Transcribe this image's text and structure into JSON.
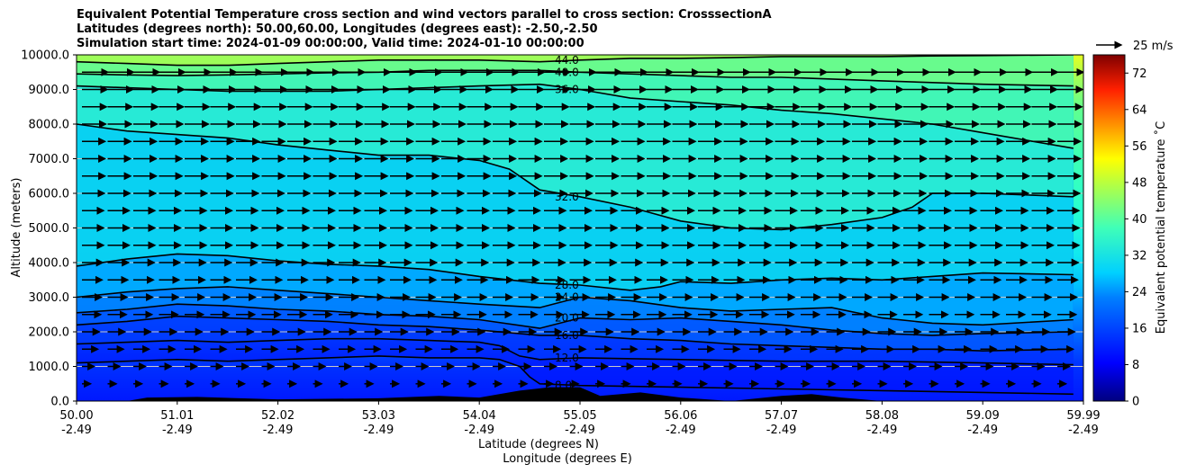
{
  "title": {
    "line1": "Equivalent Potential Temperature cross section and wind vectors parallel to cross section: CrosssectionA",
    "line2": "Latitudes (degrees north): 50.00,60.00, Longitudes (degrees east): -2.50,-2.50",
    "line3": "Simulation start time: 2024-01-09 00:00:00, Valid time: 2024-01-10 00:00:00"
  },
  "quiver_key": {
    "label": "25 m/s"
  },
  "chart_data": {
    "type": "contour",
    "ylabel": "Altitude (meters)",
    "xlabel_line1": "Latitude (degrees N)",
    "xlabel_line2": "Longitude (degrees E)",
    "ylim": [
      0,
      10000
    ],
    "y_ticks": [
      "0.0",
      "1000.0",
      "2000.0",
      "3000.0",
      "4000.0",
      "5000.0",
      "6000.0",
      "7000.0",
      "8000.0",
      "9000.0",
      "10000.0"
    ],
    "x_ticks": [
      {
        "lat": "50.00",
        "lon": "-2.49"
      },
      {
        "lat": "51.01",
        "lon": "-2.49"
      },
      {
        "lat": "52.02",
        "lon": "-2.49"
      },
      {
        "lat": "53.03",
        "lon": "-2.49"
      },
      {
        "lat": "54.04",
        "lon": "-2.49"
      },
      {
        "lat": "55.05",
        "lon": "-2.49"
      },
      {
        "lat": "56.06",
        "lon": "-2.49"
      },
      {
        "lat": "57.07",
        "lon": "-2.49"
      },
      {
        "lat": "58.08",
        "lon": "-2.49"
      },
      {
        "lat": "59.09",
        "lon": "-2.49"
      },
      {
        "lat": "59.99",
        "lon": "-2.49"
      }
    ],
    "grid": true,
    "colorbar": {
      "label": "Equivalent potential temperature ˚C",
      "min": 0,
      "max": 76,
      "ticks": [
        "0",
        "8",
        "16",
        "24",
        "32",
        "40",
        "48",
        "56",
        "64",
        "72"
      ],
      "colormap": "jet"
    },
    "contours": [
      {
        "level": 8,
        "label": "8.0",
        "points": [
          [
            0.0,
            1100
          ],
          [
            0.5,
            1150
          ],
          [
            1.0,
            1200
          ],
          [
            1.5,
            1150
          ],
          [
            2.0,
            1200
          ],
          [
            2.5,
            1250
          ],
          [
            3.0,
            1300
          ],
          [
            3.5,
            1250
          ],
          [
            4.0,
            1250
          ],
          [
            4.2,
            1200
          ],
          [
            4.4,
            1000
          ],
          [
            4.5,
            700
          ],
          [
            4.6,
            500
          ],
          [
            5.0,
            450
          ],
          [
            6.0,
            400
          ],
          [
            7.0,
            350
          ],
          [
            8.0,
            300
          ],
          [
            9.0,
            250
          ],
          [
            9.9,
            200
          ]
        ]
      },
      {
        "level": 12,
        "label": "12.0",
        "points": [
          [
            0.0,
            1650
          ],
          [
            0.5,
            1700
          ],
          [
            1.0,
            1750
          ],
          [
            1.5,
            1700
          ],
          [
            2.0,
            1750
          ],
          [
            2.5,
            1800
          ],
          [
            3.0,
            1800
          ],
          [
            3.5,
            1750
          ],
          [
            4.0,
            1700
          ],
          [
            4.2,
            1600
          ],
          [
            4.4,
            1300
          ],
          [
            4.6,
            1200
          ],
          [
            5.0,
            1250
          ],
          [
            6.0,
            1200
          ],
          [
            7.0,
            1150
          ],
          [
            8.0,
            1150
          ],
          [
            9.0,
            1100
          ],
          [
            9.9,
            1050
          ]
        ]
      },
      {
        "level": 16,
        "label": "16.0",
        "points": [
          [
            0.0,
            2200
          ],
          [
            0.5,
            2300
          ],
          [
            1.0,
            2450
          ],
          [
            1.5,
            2400
          ],
          [
            2.0,
            2350
          ],
          [
            2.5,
            2300
          ],
          [
            3.0,
            2200
          ],
          [
            3.5,
            2150
          ],
          [
            4.0,
            2050
          ],
          [
            4.6,
            1900
          ],
          [
            5.0,
            1900
          ],
          [
            5.5,
            1800
          ],
          [
            6.0,
            1750
          ],
          [
            6.5,
            1650
          ],
          [
            7.0,
            1600
          ],
          [
            7.5,
            1550
          ],
          [
            8.0,
            1500
          ],
          [
            8.5,
            1500
          ],
          [
            9.0,
            1450
          ],
          [
            9.9,
            1500
          ]
        ]
      },
      {
        "level": 20,
        "label": "20.0",
        "points": [
          [
            0.0,
            2550
          ],
          [
            0.5,
            2650
          ],
          [
            1.0,
            2800
          ],
          [
            1.5,
            2750
          ],
          [
            2.0,
            2650
          ],
          [
            2.5,
            2600
          ],
          [
            3.0,
            2500
          ],
          [
            3.5,
            2450
          ],
          [
            4.0,
            2350
          ],
          [
            4.6,
            2100
          ],
          [
            5.0,
            2400
          ],
          [
            5.5,
            2350
          ],
          [
            6.0,
            2400
          ],
          [
            6.5,
            2300
          ],
          [
            7.0,
            2200
          ],
          [
            7.5,
            2050
          ],
          [
            8.0,
            1950
          ],
          [
            8.5,
            1900
          ],
          [
            9.0,
            1950
          ],
          [
            9.9,
            2000
          ]
        ]
      },
      {
        "level": 24,
        "label": "24.0",
        "points": [
          [
            0.0,
            3000
          ],
          [
            0.5,
            3150
          ],
          [
            1.0,
            3250
          ],
          [
            1.5,
            3300
          ],
          [
            2.0,
            3200
          ],
          [
            2.5,
            3100
          ],
          [
            3.0,
            3000
          ],
          [
            3.5,
            2900
          ],
          [
            4.0,
            2800
          ],
          [
            4.6,
            2700
          ],
          [
            5.0,
            3000
          ],
          [
            5.5,
            2900
          ],
          [
            6.0,
            2700
          ],
          [
            6.5,
            2600
          ],
          [
            7.0,
            2650
          ],
          [
            7.5,
            2700
          ],
          [
            8.0,
            2400
          ],
          [
            8.5,
            2250
          ],
          [
            9.0,
            2200
          ],
          [
            9.9,
            2350
          ]
        ]
      },
      {
        "level": 28,
        "label": "28.0",
        "points": [
          [
            0.0,
            3900
          ],
          [
            0.5,
            4100
          ],
          [
            1.0,
            4250
          ],
          [
            1.5,
            4200
          ],
          [
            2.0,
            4050
          ],
          [
            2.5,
            3950
          ],
          [
            3.0,
            3900
          ],
          [
            3.5,
            3800
          ],
          [
            4.0,
            3600
          ],
          [
            4.6,
            3400
          ],
          [
            5.0,
            3350
          ],
          [
            5.5,
            3200
          ],
          [
            5.8,
            3300
          ],
          [
            6.0,
            3450
          ],
          [
            6.5,
            3400
          ],
          [
            7.0,
            3500
          ],
          [
            7.5,
            3550
          ],
          [
            8.0,
            3500
          ],
          [
            8.5,
            3600
          ],
          [
            9.0,
            3700
          ],
          [
            9.9,
            3650
          ]
        ]
      },
      {
        "level": 32,
        "label": "32.0",
        "points": [
          [
            0.0,
            8000
          ],
          [
            0.5,
            7800
          ],
          [
            1.0,
            7700
          ],
          [
            1.5,
            7600
          ],
          [
            2.0,
            7400
          ],
          [
            2.5,
            7250
          ],
          [
            3.0,
            7100
          ],
          [
            3.5,
            7100
          ],
          [
            4.0,
            6950
          ],
          [
            4.3,
            6700
          ],
          [
            4.6,
            6100
          ],
          [
            5.0,
            5900
          ],
          [
            5.5,
            5600
          ],
          [
            6.0,
            5200
          ],
          [
            6.5,
            5000
          ],
          [
            7.0,
            4950
          ],
          [
            7.5,
            5100
          ],
          [
            8.0,
            5300
          ],
          [
            8.3,
            5600
          ],
          [
            8.5,
            6000
          ],
          [
            9.0,
            6000
          ],
          [
            9.9,
            5900
          ]
        ]
      },
      {
        "level": 36,
        "label": "36.0",
        "points": [
          [
            0.0,
            9100
          ],
          [
            0.5,
            9050
          ],
          [
            1.0,
            9000
          ],
          [
            1.5,
            8950
          ],
          [
            2.0,
            8950
          ],
          [
            2.5,
            8950
          ],
          [
            3.0,
            9000
          ],
          [
            3.5,
            9050
          ],
          [
            4.0,
            9100
          ],
          [
            4.6,
            9150
          ],
          [
            5.0,
            9000
          ],
          [
            5.5,
            8750
          ],
          [
            6.0,
            8650
          ],
          [
            6.5,
            8550
          ],
          [
            7.0,
            8400
          ],
          [
            7.5,
            8300
          ],
          [
            8.0,
            8150
          ],
          [
            8.5,
            8000
          ],
          [
            9.0,
            7750
          ],
          [
            9.9,
            7300
          ]
        ]
      },
      {
        "level": 40,
        "label": "40.0",
        "points": [
          [
            0.0,
            9450
          ],
          [
            0.5,
            9420
          ],
          [
            1.0,
            9400
          ],
          [
            1.5,
            9420
          ],
          [
            2.0,
            9450
          ],
          [
            2.5,
            9480
          ],
          [
            3.0,
            9500
          ],
          [
            3.5,
            9550
          ],
          [
            4.0,
            9550
          ],
          [
            4.6,
            9550
          ],
          [
            5.0,
            9500
          ],
          [
            5.5,
            9450
          ],
          [
            6.0,
            9400
          ],
          [
            6.5,
            9350
          ],
          [
            7.0,
            9350
          ],
          [
            7.5,
            9300
          ],
          [
            8.0,
            9250
          ],
          [
            8.5,
            9200
          ],
          [
            9.0,
            9150
          ],
          [
            9.9,
            9100
          ]
        ]
      },
      {
        "level": 44,
        "label": "44.0",
        "points": [
          [
            0.0,
            9800
          ],
          [
            0.5,
            9750
          ],
          [
            1.0,
            9700
          ],
          [
            1.5,
            9700
          ],
          [
            2.0,
            9750
          ],
          [
            2.5,
            9800
          ],
          [
            3.0,
            9850
          ],
          [
            3.5,
            9850
          ],
          [
            4.0,
            9850
          ],
          [
            4.6,
            9800
          ],
          [
            5.0,
            9850
          ],
          [
            5.5,
            9900
          ],
          [
            6.0,
            9900
          ],
          [
            6.5,
            9920
          ],
          [
            7.0,
            9950
          ],
          [
            7.5,
            9950
          ],
          [
            8.0,
            9950
          ],
          [
            8.5,
            9970
          ],
          [
            9.0,
            9980
          ],
          [
            9.9,
            10000
          ]
        ]
      }
    ],
    "wind": {
      "u_speed_m_s_by_altitude": [
        [
          500,
          6
        ],
        [
          1500,
          11
        ],
        [
          2500,
          13
        ],
        [
          3500,
          14
        ],
        [
          4500,
          15
        ],
        [
          5500,
          15
        ],
        [
          6500,
          16
        ],
        [
          7500,
          16
        ],
        [
          8500,
          17
        ],
        [
          9500,
          18
        ]
      ],
      "v_speed_m_s": 0
    },
    "terrain": [
      [
        0.5,
        0
      ],
      [
        0.7,
        100
      ],
      [
        1.2,
        120
      ],
      [
        2.0,
        50
      ],
      [
        3.0,
        80
      ],
      [
        3.6,
        150
      ],
      [
        4.0,
        100
      ],
      [
        4.4,
        300
      ],
      [
        4.7,
        400
      ],
      [
        5.0,
        400
      ],
      [
        5.2,
        150
      ],
      [
        5.6,
        250
      ],
      [
        6.0,
        100
      ],
      [
        6.5,
        0
      ],
      [
        7.0,
        150
      ],
      [
        7.3,
        200
      ],
      [
        7.6,
        100
      ],
      [
        8.0,
        0
      ]
    ]
  }
}
